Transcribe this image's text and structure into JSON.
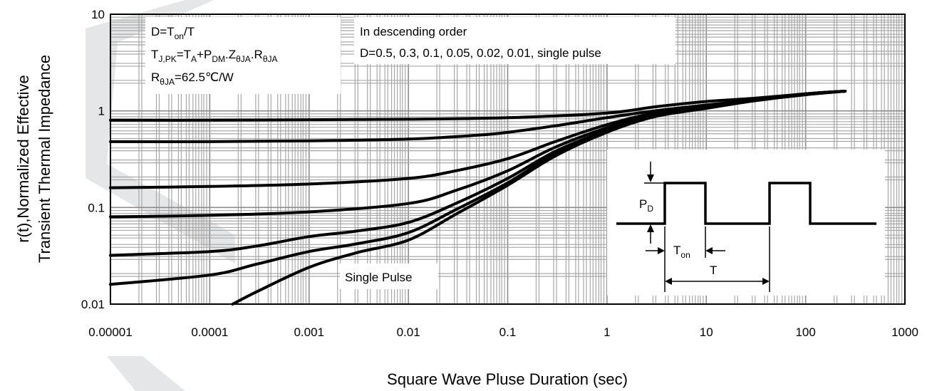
{
  "chart_data": {
    "type": "line",
    "title": "",
    "xlabel": "Square Wave Pluse Duration (sec)",
    "ylabel_lines": [
      "r(t),Normalized Effective",
      "Transient Thermal Impedance"
    ],
    "x_scale": "log",
    "y_scale": "log",
    "xlim": [
      1e-05,
      1000
    ],
    "ylim": [
      0.01,
      10
    ],
    "x_tick_labels": [
      "0.00001",
      "0.0001",
      "0.001",
      "0.01",
      "0.1",
      "1",
      "10",
      "100",
      "1000"
    ],
    "y_tick_labels": [
      "10",
      "1",
      "0.1",
      "0.01"
    ],
    "grid": true,
    "annotations": {
      "formula_box": {
        "line1_main": "D=T",
        "line1_sub": "on",
        "line1_end": "/T",
        "line2_a": "T",
        "line2_a_sub": "J,PK",
        "line2_b": "=T",
        "line2_b_sub": "A",
        "line2_c": "+P",
        "line2_c_sub": "DM",
        "line2_d": ".Z",
        "line2_d_sub": "θJA",
        "line2_e": ".R",
        "line2_e_sub": "θJA",
        "line3_main": "R",
        "line3_sub": "θJA",
        "line3_end": "=62.5℃/W"
      },
      "order_box": {
        "line1": "In descending order",
        "line2": "D=0.5, 0.3, 0.1, 0.05, 0.02, 0.01, single pulse"
      },
      "single_pulse_label": "Single Pulse",
      "inset": {
        "pd_main": "P",
        "pd_sub": "D",
        "ton_main": "T",
        "ton_sub": "on",
        "t_label": "T"
      }
    },
    "series": [
      {
        "x": [
          1e-05,
          0.0001,
          0.001,
          0.01,
          0.1,
          1,
          3,
          10,
          30,
          100,
          250
        ],
        "y": [
          0.8,
          0.8,
          0.81,
          0.82,
          0.85,
          0.95,
          1.1,
          1.25,
          1.35,
          1.5,
          1.6
        ]
      },
      {
        "x": [
          1e-05,
          0.0001,
          0.001,
          0.01,
          0.05,
          0.1,
          0.3,
          1,
          3,
          10,
          30,
          100,
          250
        ],
        "y": [
          0.48,
          0.48,
          0.49,
          0.51,
          0.56,
          0.6,
          0.7,
          0.85,
          1.0,
          1.15,
          1.3,
          1.5,
          1.6
        ]
      },
      {
        "x": [
          1e-05,
          0.0001,
          0.001,
          0.01,
          0.03,
          0.1,
          0.3,
          1,
          3,
          10,
          30,
          100,
          250
        ],
        "y": [
          0.16,
          0.165,
          0.175,
          0.2,
          0.24,
          0.32,
          0.48,
          0.72,
          0.95,
          1.12,
          1.3,
          1.5,
          1.6
        ]
      },
      {
        "x": [
          1e-05,
          0.0001,
          0.001,
          0.01,
          0.03,
          0.1,
          0.3,
          1,
          3,
          10,
          30,
          100,
          250
        ],
        "y": [
          0.08,
          0.083,
          0.09,
          0.11,
          0.15,
          0.24,
          0.42,
          0.67,
          0.92,
          1.1,
          1.3,
          1.5,
          1.6
        ]
      },
      {
        "x": [
          1e-05,
          0.0001,
          0.0003,
          0.001,
          0.003,
          0.01,
          0.03,
          0.1,
          0.3,
          1,
          3,
          10,
          30,
          100,
          250
        ],
        "y": [
          0.032,
          0.035,
          0.04,
          0.05,
          0.057,
          0.07,
          0.11,
          0.2,
          0.38,
          0.63,
          0.9,
          1.08,
          1.28,
          1.48,
          1.6
        ]
      },
      {
        "x": [
          1e-05,
          0.0001,
          0.0003,
          0.001,
          0.003,
          0.01,
          0.03,
          0.1,
          0.3,
          1,
          3,
          10,
          30,
          100,
          250
        ],
        "y": [
          0.016,
          0.02,
          0.026,
          0.035,
          0.042,
          0.055,
          0.095,
          0.18,
          0.36,
          0.61,
          0.88,
          1.07,
          1.27,
          1.47,
          1.6
        ]
      },
      {
        "x": [
          0.00017,
          0.0003,
          0.001,
          0.003,
          0.01,
          0.03,
          0.1,
          0.3,
          1,
          3,
          10,
          30,
          100,
          250
        ],
        "y": [
          0.01,
          0.0135,
          0.024,
          0.034,
          0.046,
          0.085,
          0.17,
          0.34,
          0.6,
          0.87,
          1.06,
          1.27,
          1.47,
          1.6
        ]
      }
    ],
    "style": {
      "line_color": "#000000",
      "grid_major_color": "#8c8c8c",
      "grid_minor_color": "#a8a8a8",
      "watermark_color": "#cfd2d6"
    }
  }
}
